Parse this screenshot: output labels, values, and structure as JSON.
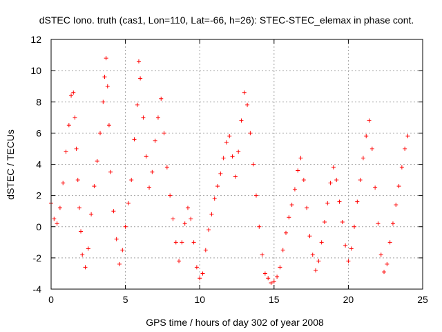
{
  "chart_data": {
    "type": "scatter",
    "title": "dSTEC Iono. truth (cas1, Lon=110, Lat=-66, h=26): STEC-STEC_elemax in phase cont.",
    "xlabel": "GPS time / hours of day 302 of year 2008",
    "ylabel": "dSTEC  / TECUs",
    "xlim": [
      0,
      25
    ],
    "ylim": [
      -4,
      12
    ],
    "xticks": [
      0,
      5,
      10,
      15,
      20,
      25
    ],
    "yticks": [
      -4,
      -2,
      0,
      2,
      4,
      6,
      8,
      10,
      12
    ],
    "xtick_labels": [
      "0",
      "5",
      "10",
      "15",
      "20",
      "25"
    ],
    "ytick_labels": [
      "-4",
      "-2",
      "0",
      "2",
      "4",
      "6",
      "8",
      "10",
      "12"
    ],
    "grid": true,
    "marker": "+",
    "color": "#ff0000",
    "series": [
      {
        "name": "dSTEC",
        "x": [
          0,
          0.2,
          0.4,
          0.6,
          0.8,
          1.0,
          1.2,
          1.35,
          1.5,
          1.6,
          1.7,
          1.8,
          1.9,
          2.0,
          2.1,
          2.3,
          2.5,
          2.7,
          2.9,
          3.1,
          3.3,
          3.5,
          3.6,
          3.7,
          3.8,
          3.9,
          4.0,
          4.2,
          4.4,
          4.6,
          4.8,
          5.0,
          5.2,
          5.4,
          5.6,
          5.8,
          5.9,
          6.0,
          6.2,
          6.4,
          6.6,
          6.8,
          7.0,
          7.2,
          7.4,
          7.6,
          7.8,
          8.0,
          8.2,
          8.4,
          8.6,
          8.8,
          9.0,
          9.2,
          9.4,
          9.6,
          9.8,
          10.0,
          10.2,
          10.4,
          10.6,
          10.8,
          11.0,
          11.2,
          11.4,
          11.6,
          11.8,
          12.0,
          12.2,
          12.4,
          12.6,
          12.8,
          13.0,
          13.2,
          13.4,
          13.6,
          13.8,
          14.0,
          14.2,
          14.4,
          14.6,
          14.8,
          15.0,
          15.2,
          15.4,
          15.6,
          15.8,
          16.0,
          16.2,
          16.4,
          16.6,
          16.8,
          17.0,
          17.2,
          17.4,
          17.6,
          17.8,
          18.0,
          18.2,
          18.4,
          18.6,
          18.8,
          19.0,
          19.2,
          19.4,
          19.6,
          19.8,
          20.0,
          20.2,
          20.4,
          20.6,
          20.8,
          21.0,
          21.2,
          21.4,
          21.6,
          21.8,
          22.0,
          22.2,
          22.4,
          22.6,
          22.8,
          23.0,
          23.2,
          23.4,
          23.6,
          23.8,
          24.0
        ],
        "y": [
          1.5,
          0.5,
          0.2,
          1.2,
          2.8,
          4.8,
          6.5,
          8.4,
          8.6,
          7.0,
          5.0,
          3.0,
          1.2,
          -0.3,
          -1.8,
          -2.6,
          -1.4,
          0.8,
          2.6,
          4.2,
          6.0,
          8.0,
          9.6,
          10.8,
          9.0,
          6.5,
          3.5,
          1.0,
          -0.8,
          -2.4,
          -1.5,
          0.0,
          1.5,
          3.0,
          5.6,
          7.8,
          10.6,
          9.5,
          7.0,
          4.5,
          2.5,
          3.5,
          5.5,
          7.0,
          8.2,
          6.0,
          3.8,
          2.0,
          0.5,
          -1.0,
          -2.2,
          -1.0,
          0.2,
          1.2,
          0.5,
          -1.0,
          -2.6,
          -3.3,
          -3.0,
          -1.5,
          -0.2,
          0.8,
          1.8,
          2.6,
          3.4,
          4.4,
          5.4,
          5.8,
          4.5,
          3.2,
          4.8,
          6.8,
          8.6,
          7.8,
          6.0,
          4.0,
          2.0,
          0.0,
          -1.8,
          -3.0,
          -3.3,
          -3.6,
          -3.5,
          -3.2,
          -2.6,
          -1.5,
          -0.4,
          0.6,
          1.4,
          2.4,
          3.6,
          4.4,
          3.0,
          1.2,
          -0.6,
          -1.8,
          -2.8,
          -2.2,
          -1.0,
          0.3,
          1.5,
          2.8,
          3.8,
          3.0,
          1.6,
          0.3,
          -1.2,
          -2.2,
          -1.4,
          0.0,
          1.6,
          3.0,
          4.4,
          5.8,
          6.8,
          5.0,
          2.5,
          0.2,
          -1.8,
          -2.9,
          -2.4,
          -1.0,
          0.2,
          1.4,
          2.6,
          3.8,
          5.0,
          5.8
        ]
      }
    ]
  }
}
